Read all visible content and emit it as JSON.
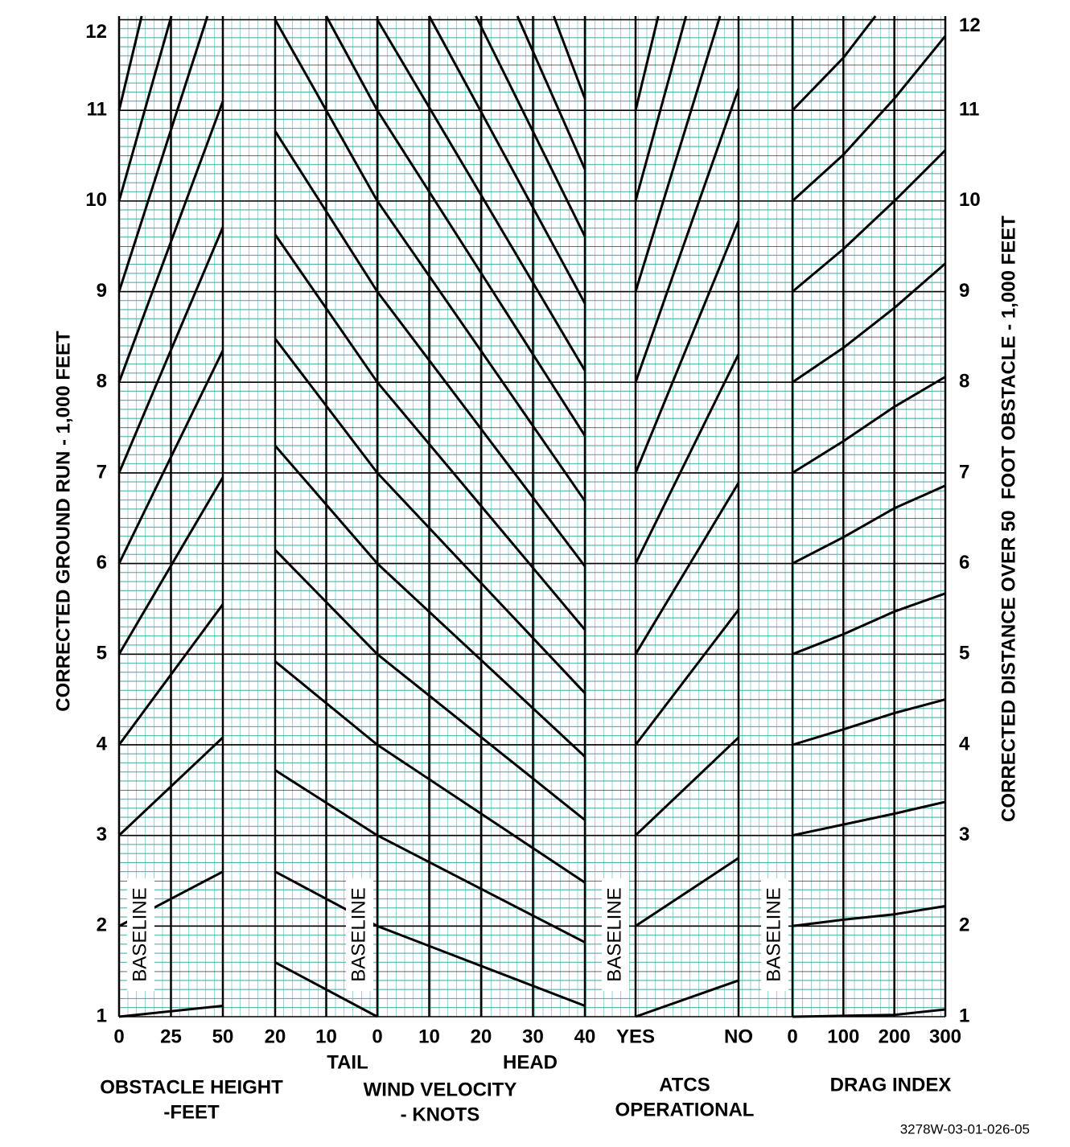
{
  "chart_data": {
    "type": "nomogram",
    "y_axis_label": "CORRECTED GROUND RUN - 1,000 FEET",
    "y2_axis_label": "CORRECTED DISTANCE OVER 50  FOOT OBSTACLE - 1,000 FEET",
    "ylim": [
      1,
      12.04
    ],
    "yticks": [
      1,
      2,
      3,
      4,
      5,
      6,
      7,
      8,
      9,
      10,
      11,
      12
    ],
    "y2lim": [
      1,
      12.04
    ],
    "y2ticks": [
      1,
      2,
      3,
      4,
      5,
      6,
      7,
      8,
      9,
      10,
      11,
      12
    ],
    "grid": true,
    "line_color": "#000000",
    "grid_color": "#3aa7a0",
    "footer": "3278W-03-01-026-05",
    "panels": [
      {
        "title_lines": [
          "OBSTACLE HEIGHT",
          "-FEET"
        ],
        "baseline_label": "BASELINE",
        "xlim": [
          0,
          50
        ],
        "xticks": [
          0,
          25,
          50
        ],
        "lines": [
          {
            "x": [
              0,
              50
            ],
            "y": [
              1,
              1.12
            ]
          },
          {
            "x": [
              0,
              50
            ],
            "y": [
              2,
              2.6
            ]
          },
          {
            "x": [
              0,
              50
            ],
            "y": [
              3,
              4.08
            ]
          },
          {
            "x": [
              0,
              50
            ],
            "y": [
              4,
              5.55
            ]
          },
          {
            "x": [
              0,
              50
            ],
            "y": [
              5,
              6.95
            ]
          },
          {
            "x": [
              0,
              50
            ],
            "y": [
              6,
              8.35
            ]
          },
          {
            "x": [
              0,
              50
            ],
            "y": [
              7,
              9.71
            ]
          },
          {
            "x": [
              0,
              50
            ],
            "y": [
              8,
              11.1
            ]
          },
          {
            "x": [
              0,
              42.6
            ],
            "y": [
              9,
              12.04
            ]
          },
          {
            "x": [
              0,
              25.2
            ],
            "y": [
              10,
              12.04
            ]
          },
          {
            "x": [
              0,
              10.9
            ],
            "y": [
              11,
              12.04
            ]
          }
        ]
      },
      {
        "axis_note": "TAIL",
        "xlim": [
          20,
          0
        ],
        "xticks": [
          20,
          10
        ],
        "lines": [
          {
            "x": [
              20,
              0
            ],
            "y": [
              1.6,
              1
            ]
          },
          {
            "x": [
              20,
              0
            ],
            "y": [
              2.6,
              2
            ]
          },
          {
            "x": [
              20,
              0
            ],
            "y": [
              3.72,
              3
            ]
          },
          {
            "x": [
              20,
              0
            ],
            "y": [
              4.92,
              4
            ]
          },
          {
            "x": [
              20,
              0
            ],
            "y": [
              6.15,
              5
            ]
          },
          {
            "x": [
              20,
              0
            ],
            "y": [
              7.3,
              6
            ]
          },
          {
            "x": [
              20,
              0
            ],
            "y": [
              8.48,
              7
            ]
          },
          {
            "x": [
              20,
              0
            ],
            "y": [
              9.63,
              8
            ]
          },
          {
            "x": [
              20,
              0
            ],
            "y": [
              10.77,
              9
            ]
          },
          {
            "x": [
              20,
              0
            ],
            "y": [
              12,
              10
            ]
          },
          {
            "x": [
              10,
              0
            ],
            "y": [
              12.04,
              11
            ]
          }
        ]
      },
      {
        "axis_note": "HEAD",
        "title_lines": [
          "WIND VELOCITY",
          "- KNOTS"
        ],
        "baseline_label": "BASELINE",
        "xlim": [
          0,
          40
        ],
        "xticks": [
          0,
          10,
          20,
          30,
          40
        ],
        "lines": [
          {
            "x": [
              0,
              40
            ],
            "y": [
              2,
              1.12
            ]
          },
          {
            "x": [
              0,
              40
            ],
            "y": [
              3,
              1.82
            ]
          },
          {
            "x": [
              0,
              40
            ],
            "y": [
              4,
              2.48
            ]
          },
          {
            "x": [
              0,
              40
            ],
            "y": [
              5,
              3.17
            ]
          },
          {
            "x": [
              0,
              40
            ],
            "y": [
              6,
              3.87
            ]
          },
          {
            "x": [
              0,
              40
            ],
            "y": [
              7,
              4.57
            ]
          },
          {
            "x": [
              0,
              40
            ],
            "y": [
              8,
              5.27
            ]
          },
          {
            "x": [
              0,
              40
            ],
            "y": [
              9,
              5.97
            ]
          },
          {
            "x": [
              0,
              40
            ],
            "y": [
              10,
              6.69
            ]
          },
          {
            "x": [
              0,
              40
            ],
            "y": [
              11,
              7.41
            ]
          },
          {
            "x": [
              0,
              40
            ],
            "y": [
              12,
              8.13
            ]
          },
          {
            "x": [
              10,
              40
            ],
            "y": [
              12.04,
              8.87
            ]
          },
          {
            "x": [
              19,
              40
            ],
            "y": [
              12.04,
              9.61
            ]
          },
          {
            "x": [
              27,
              40
            ],
            "y": [
              12.04,
              10.35
            ]
          },
          {
            "x": [
              34,
              40
            ],
            "y": [
              12.04,
              11.13
            ]
          }
        ]
      },
      {
        "title_lines": [
          "ATCS",
          "OPERATIONAL"
        ],
        "baseline_label": "BASELINE",
        "xlim": [
          0,
          1
        ],
        "xticks": [
          {
            "value": 0,
            "label": "YES"
          },
          {
            "value": 1,
            "label": "NO"
          }
        ],
        "lines": [
          {
            "x": [
              0,
              1
            ],
            "y": [
              1,
              1.4
            ]
          },
          {
            "x": [
              0,
              1
            ],
            "y": [
              2,
              2.75
            ]
          },
          {
            "x": [
              0,
              1
            ],
            "y": [
              3,
              4.08
            ]
          },
          {
            "x": [
              0,
              1
            ],
            "y": [
              4,
              5.49
            ]
          },
          {
            "x": [
              0,
              1
            ],
            "y": [
              5,
              6.89
            ]
          },
          {
            "x": [
              0,
              1
            ],
            "y": [
              6,
              8.31
            ]
          },
          {
            "x": [
              0,
              1
            ],
            "y": [
              7,
              9.78
            ]
          },
          {
            "x": [
              0,
              1
            ],
            "y": [
              8,
              11.24
            ]
          },
          {
            "x": [
              0,
              0.82
            ],
            "y": [
              9,
              12.04
            ]
          },
          {
            "x": [
              0,
              0.49
            ],
            "y": [
              10,
              12.04
            ]
          },
          {
            "x": [
              0,
              0.22
            ],
            "y": [
              11,
              12.04
            ]
          }
        ]
      },
      {
        "title_lines": [
          "DRAG INDEX"
        ],
        "baseline_label": "BASELINE",
        "xlim": [
          0,
          300
        ],
        "xticks": [
          0,
          100,
          200,
          300
        ],
        "lines": [
          {
            "x": [
              0,
              100,
              200,
              300
            ],
            "y": [
              1,
              1.01,
              1.02,
              1.08
            ]
          },
          {
            "x": [
              0,
              100,
              200,
              300
            ],
            "y": [
              2,
              2.07,
              2.13,
              2.22
            ]
          },
          {
            "x": [
              0,
              100,
              200,
              300
            ],
            "y": [
              3,
              3.12,
              3.24,
              3.37
            ]
          },
          {
            "x": [
              0,
              100,
              200,
              300
            ],
            "y": [
              4,
              4.17,
              4.35,
              4.5
            ]
          },
          {
            "x": [
              0,
              100,
              200,
              300
            ],
            "y": [
              5,
              5.22,
              5.47,
              5.67
            ]
          },
          {
            "x": [
              0,
              100,
              200,
              300
            ],
            "y": [
              6,
              6.29,
              6.61,
              6.86
            ]
          },
          {
            "x": [
              0,
              100,
              200,
              300
            ],
            "y": [
              7,
              7.35,
              7.73,
              8.06
            ]
          },
          {
            "x": [
              0,
              100,
              200,
              300
            ],
            "y": [
              8,
              8.38,
              8.82,
              9.31
            ]
          },
          {
            "x": [
              0,
              100,
              200,
              300
            ],
            "y": [
              9,
              9.47,
              10.0,
              10.56
            ]
          },
          {
            "x": [
              0,
              100,
              200,
              300
            ],
            "y": [
              10,
              10.51,
              11.13,
              11.82
            ]
          },
          {
            "x": [
              0,
              100,
              163
            ],
            "y": [
              11,
              11.58,
              12.04
            ]
          }
        ]
      }
    ]
  }
}
